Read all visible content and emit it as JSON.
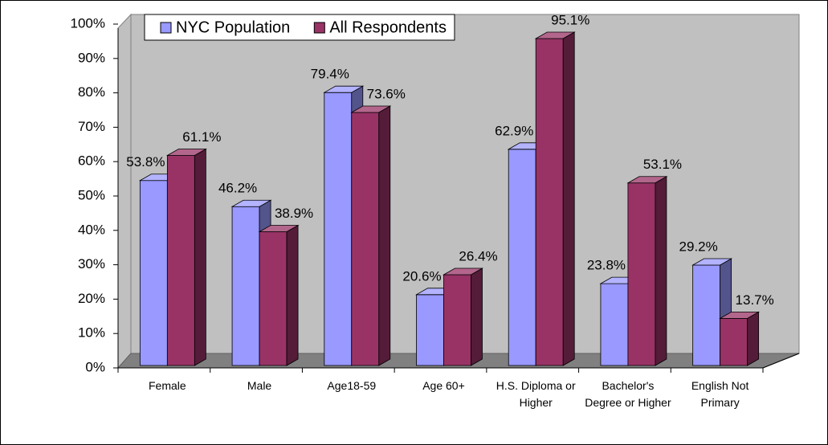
{
  "chart_data": {
    "type": "bar3d",
    "categories": [
      "Female",
      "Male",
      "Age18-59",
      "Age 60+",
      "H.S. Diploma or Higher",
      "Bachelor's Degree or Higher",
      "English Not Primary"
    ],
    "series": [
      {
        "name": "NYC Population",
        "color": "#9999ff",
        "values": [
          53.8,
          46.2,
          79.4,
          20.6,
          62.9,
          23.8,
          29.2
        ],
        "value_labels": [
          "53.8%",
          "46.2%",
          "79.4%",
          "20.6%",
          "62.9%",
          "23.8%",
          "29.2%"
        ]
      },
      {
        "name": "All Respondents",
        "color": "#993366",
        "values": [
          61.1,
          38.9,
          73.6,
          26.4,
          95.1,
          53.1,
          13.7
        ],
        "value_labels": [
          "61.1%",
          "38.9%",
          "73.6%",
          "26.4%",
          "95.1%",
          "53.1%",
          "13.7%"
        ]
      }
    ],
    "ylim": [
      0,
      100
    ],
    "yticks": [
      {
        "value": 0,
        "label": "0%"
      },
      {
        "value": 10,
        "label": "10%"
      },
      {
        "value": 20,
        "label": "20%"
      },
      {
        "value": 30,
        "label": "30%"
      },
      {
        "value": 40,
        "label": "40%"
      },
      {
        "value": 50,
        "label": "50%"
      },
      {
        "value": 60,
        "label": "60%"
      },
      {
        "value": 70,
        "label": "70%"
      },
      {
        "value": 80,
        "label": "80%"
      },
      {
        "value": 90,
        "label": "90%"
      },
      {
        "value": 100,
        "label": "100%"
      }
    ],
    "legend": "top"
  }
}
